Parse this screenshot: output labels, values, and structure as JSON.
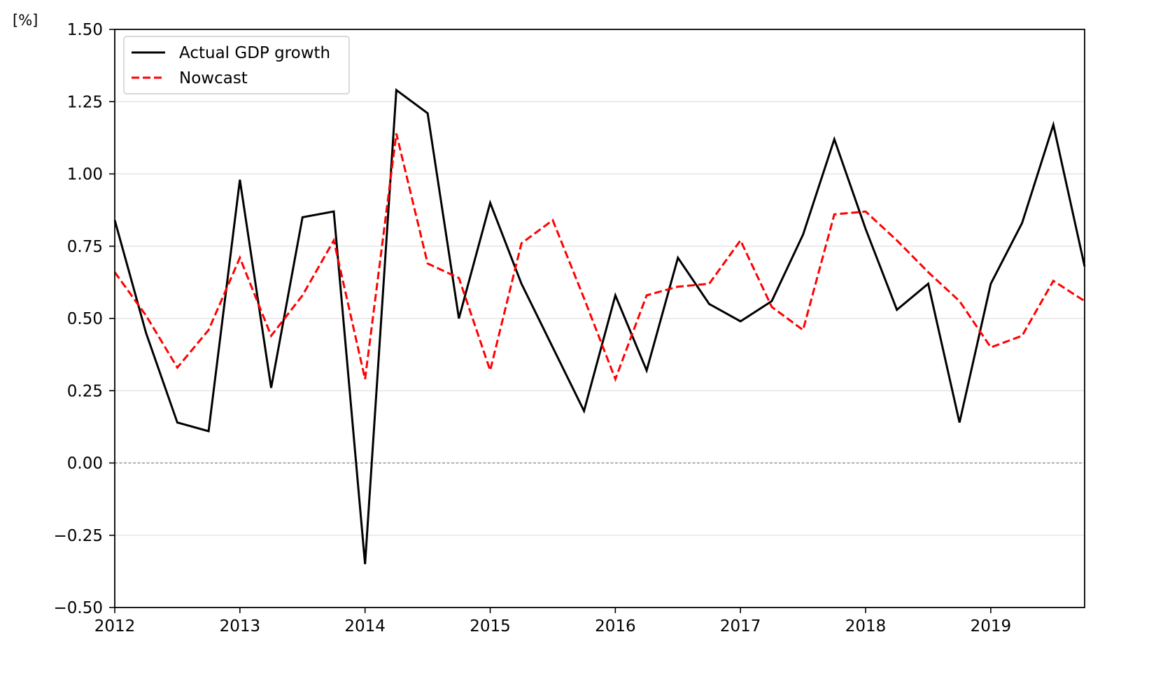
{
  "chart_data": {
    "type": "line",
    "title": "",
    "xlabel": "",
    "ylabel": "[%]",
    "ylim": [
      -0.5,
      1.5
    ],
    "xlim": [
      2012.0,
      2019.75
    ],
    "yticks": [
      -0.5,
      -0.25,
      0.0,
      0.25,
      0.5,
      0.75,
      1.0,
      1.25,
      1.5
    ],
    "ytick_labels": [
      "−0.50",
      "−0.25",
      "0.00",
      "0.25",
      "0.50",
      "0.75",
      "1.00",
      "1.25",
      "1.50"
    ],
    "xticks": [
      2012,
      2013,
      2014,
      2015,
      2016,
      2017,
      2018,
      2019
    ],
    "xtick_labels": [
      "2012",
      "2013",
      "2014",
      "2015",
      "2016",
      "2017",
      "2018",
      "2019"
    ],
    "grid": "horizontal",
    "zero_line": true,
    "legend_position": "top-left",
    "x": [
      2012.0,
      2012.25,
      2012.5,
      2012.75,
      2013.0,
      2013.25,
      2013.5,
      2013.75,
      2014.0,
      2014.25,
      2014.5,
      2014.75,
      2015.0,
      2015.25,
      2015.5,
      2015.75,
      2016.0,
      2016.25,
      2016.5,
      2016.75,
      2017.0,
      2017.25,
      2017.5,
      2017.75,
      2018.0,
      2018.25,
      2018.5,
      2018.75,
      2019.0,
      2019.25,
      2019.5,
      2019.75
    ],
    "series": [
      {
        "name": "Actual GDP growth",
        "color": "#000000",
        "style": "solid",
        "values": [
          0.84,
          0.45,
          0.14,
          0.11,
          0.98,
          0.26,
          0.85,
          0.87,
          -0.35,
          1.29,
          1.21,
          0.5,
          0.9,
          0.62,
          0.4,
          0.18,
          0.58,
          0.32,
          0.71,
          0.55,
          0.49,
          0.56,
          0.79,
          1.12,
          0.81,
          0.53,
          0.62,
          0.14,
          0.62,
          0.83,
          1.17,
          0.68
        ]
      },
      {
        "name": "Nowcast",
        "color": "#ff0000",
        "style": "dashed",
        "values": [
          0.66,
          0.51,
          0.33,
          0.46,
          0.71,
          0.44,
          0.58,
          0.77,
          0.29,
          1.14,
          0.69,
          0.64,
          0.32,
          0.76,
          0.84,
          0.57,
          0.29,
          0.58,
          0.61,
          0.62,
          0.77,
          0.54,
          0.46,
          0.86,
          0.87,
          0.77,
          0.66,
          0.56,
          0.4,
          0.44,
          0.63,
          0.56
        ]
      }
    ]
  }
}
